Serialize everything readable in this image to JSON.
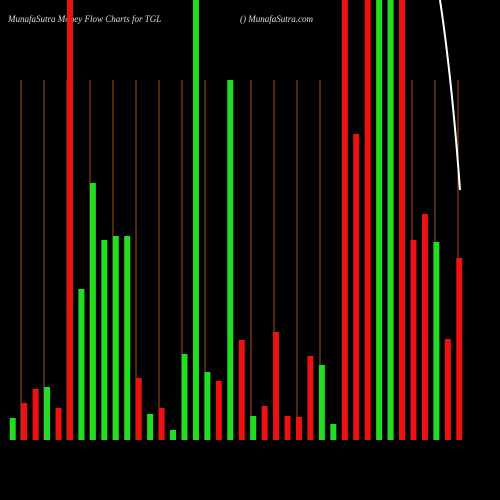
{
  "chart_data": {
    "type": "bar",
    "title": "MunafaSutra  Money Flow  Charts for TGL",
    "subtitle": "() MunafaSutra.com",
    "categories": [
      null,
      null,
      null,
      null,
      null,
      null,
      null,
      null,
      null,
      null,
      null,
      null,
      null,
      null,
      null,
      null,
      null,
      null,
      null,
      null,
      null,
      null,
      null,
      null,
      null,
      null,
      null,
      null,
      null,
      null,
      null,
      null,
      null,
      null,
      null,
      null,
      null,
      null,
      null,
      null
    ],
    "values": [
      22,
      37,
      51,
      53,
      32,
      440,
      151,
      257,
      200,
      204,
      204,
      62,
      26,
      32,
      10,
      86,
      440,
      68,
      59,
      360,
      100,
      24,
      34,
      108,
      24,
      23,
      84,
      75,
      16,
      440,
      306,
      440,
      440,
      440,
      440,
      200,
      226,
      198,
      101,
      182
    ],
    "colors": [
      "#22dd22",
      "#ee1111",
      "#ee1111",
      "#22dd22",
      "#ee1111",
      "#ee1111",
      "#22dd22",
      "#22dd22",
      "#22dd22",
      "#22dd22",
      "#22dd22",
      "#ee1111",
      "#22dd22",
      "#ee1111",
      "#22dd22",
      "#22dd22",
      "#22dd22",
      "#22dd22",
      "#ee1111",
      "#22dd22",
      "#ee1111",
      "#22dd22",
      "#ee1111",
      "#ee1111",
      "#ee1111",
      "#ee1111",
      "#ee1111",
      "#22dd22",
      "#22dd22",
      "#ee1111",
      "#ee1111",
      "#ee1111",
      "#22dd22",
      "#22dd22",
      "#ee1111",
      "#ee1111",
      "#ee1111",
      "#22dd22",
      "#ee1111",
      "#ee1111"
    ],
    "ylim": [
      0,
      440
    ]
  }
}
